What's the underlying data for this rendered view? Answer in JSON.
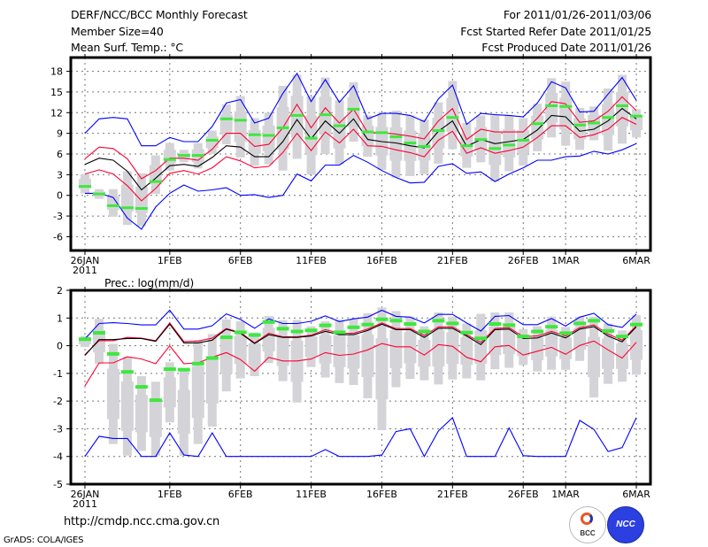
{
  "header": {
    "title": "DERF/NCC/BCC Monthly Forecast",
    "member_size": "Member Size=40",
    "period": "For 2011/01/26-2011/03/06",
    "started": "Fcst Started Refer Date 2011/01/25",
    "produced": "Fcst Produced Date 2011/01/26"
  },
  "footer": {
    "url": "http://cmdp.ncc.cma.gov.cn",
    "grads": "GrADS: COLA/IGES",
    "logos": [
      "BCC",
      "NCC"
    ]
  },
  "colors": {
    "max_min": "#0000ff",
    "spread": "#ff0033",
    "mean": "#000000",
    "member": "#3ee83e",
    "range": "#d4d4d8"
  },
  "chart_data": [
    {
      "type": "line",
      "title": "Mean Surf. Temp.: °C",
      "ylabel": "°C",
      "ylim": [
        -8,
        20
      ],
      "yticks": [
        -6,
        -3,
        0,
        3,
        6,
        9,
        12,
        15,
        18
      ],
      "xlim": [
        -1,
        40
      ],
      "x_ticks": [
        {
          "day": 0,
          "label": "26JAN",
          "sub": "2011"
        },
        {
          "day": 6,
          "label": "1FEB"
        },
        {
          "day": 11,
          "label": "6FEB"
        },
        {
          "day": 16,
          "label": "11FEB"
        },
        {
          "day": 21,
          "label": "16FEB"
        },
        {
          "day": 26,
          "label": "21FEB"
        },
        {
          "day": 31,
          "label": "26FEB"
        },
        {
          "day": 34,
          "label": "1MAR"
        },
        {
          "day": 39,
          "label": "6MAR"
        }
      ],
      "grid": true,
      "series": [
        {
          "name": "upper-max",
          "color": "#0000ff",
          "values": [
            9.0,
            11.1,
            11.3,
            11.1,
            7.2,
            7.2,
            8.4,
            7.8,
            7.8,
            10.0,
            13.4,
            13.9,
            10.5,
            11.2,
            14.8,
            17.7,
            13.6,
            16.8,
            13.5,
            15.9,
            11.1,
            11.9,
            11.9,
            11.6,
            10.7,
            14.0,
            16.0,
            10.3,
            11.9,
            11.7,
            11.6,
            11.4,
            13.4,
            16.5,
            15.6,
            12.1,
            12.2,
            14.7,
            17.1,
            13.8
          ]
        },
        {
          "name": "upper-spread",
          "color": "#ff0033",
          "values": [
            5.3,
            7.0,
            6.8,
            5.3,
            2.4,
            3.6,
            5.4,
            5.4,
            5.1,
            6.7,
            9.0,
            9.0,
            7.1,
            7.4,
            9.8,
            13.2,
            9.8,
            12.7,
            10.5,
            12.5,
            9.1,
            9.1,
            8.9,
            8.6,
            8.2,
            10.8,
            12.6,
            8.1,
            9.6,
            9.2,
            9.2,
            9.2,
            11.2,
            13.6,
            13.3,
            10.6,
            10.8,
            12.2,
            14.3,
            12.3
          ]
        },
        {
          "name": "ensemble-mean",
          "color": "#000000",
          "values": [
            4.5,
            5.4,
            5.1,
            3.5,
            0.8,
            2.5,
            4.3,
            4.5,
            4.2,
            5.5,
            7.2,
            7.0,
            5.6,
            5.6,
            7.8,
            11.0,
            8.2,
            10.8,
            9.0,
            11.1,
            8.1,
            7.8,
            7.6,
            7.2,
            6.9,
            9.3,
            10.8,
            7.1,
            8.1,
            7.5,
            7.8,
            8.1,
            9.5,
            11.6,
            11.4,
            9.3,
            9.6,
            10.8,
            12.6,
            11.1
          ]
        },
        {
          "name": "lower-spread",
          "color": "#ff0033",
          "values": [
            3.1,
            3.7,
            3.1,
            1.4,
            -0.8,
            1.0,
            3.2,
            3.6,
            3.1,
            4.0,
            5.6,
            5.0,
            4.0,
            4.2,
            6.2,
            9.0,
            6.5,
            9.2,
            7.6,
            9.6,
            7.2,
            7.1,
            6.6,
            6.2,
            5.6,
            8.0,
            9.3,
            6.1,
            6.9,
            6.1,
            6.5,
            7.0,
            8.4,
            10.1,
            10.1,
            8.4,
            8.8,
            9.6,
            11.3,
            10.3
          ]
        },
        {
          "name": "lower-min",
          "color": "#0000ff",
          "values": [
            0.3,
            0.3,
            -0.3,
            -3.3,
            -4.9,
            -1.7,
            0.3,
            1.5,
            0.6,
            0.8,
            1.1,
            0.0,
            0.1,
            -0.3,
            0.0,
            3.1,
            2.1,
            4.4,
            4.4,
            5.8,
            4.8,
            3.6,
            2.6,
            1.8,
            1.9,
            4.2,
            4.6,
            3.2,
            3.4,
            2.0,
            3.1,
            4.0,
            5.1,
            5.1,
            5.6,
            5.7,
            6.4,
            6.0,
            6.6,
            7.5
          ]
        }
      ],
      "markers": {
        "name": "member",
        "color": "#3ee83e",
        "values": [
          1.3,
          0.2,
          -1.5,
          -1.8,
          -1.9,
          2.0,
          5.2,
          5.8,
          5.8,
          8.0,
          11.1,
          10.9,
          8.8,
          8.7,
          9.8,
          11.6,
          8.3,
          11.7,
          10.1,
          12.5,
          9.2,
          9.1,
          8.5,
          7.6,
          7.1,
          9.4,
          11.3,
          7.2,
          8.1,
          6.8,
          7.3,
          8.0,
          10.4,
          13.0,
          12.9,
          10.2,
          10.5,
          11.3,
          13.0,
          11.5
        ]
      },
      "ranges": {
        "name": "range",
        "low": [
          0.3,
          -0.5,
          -3.1,
          -4.3,
          -4.5,
          0.2,
          3.6,
          4.8,
          3.9,
          6.0,
          7.4,
          5.5,
          4.3,
          4.5,
          3.6,
          5.3,
          3.0,
          6.0,
          4.5,
          7.8,
          5.6,
          3.7,
          2.6,
          2.8,
          3.1,
          4.6,
          6.7,
          4.0,
          4.8,
          2.0,
          3.5,
          4.3,
          6.4,
          8.4,
          7.2,
          6.6,
          8.0,
          6.5,
          7.5,
          8.4
        ],
        "high": [
          3.1,
          0.9,
          0.9,
          3.5,
          3.2,
          5.8,
          7.6,
          6.6,
          7.6,
          9.4,
          13.2,
          14.4,
          11.2,
          12.0,
          15.9,
          17.5,
          14.4,
          17.1,
          13.8,
          16.4,
          11.6,
          12.0,
          12.3,
          11.6,
          11.0,
          13.5,
          16.6,
          10.5,
          11.6,
          11.6,
          11.6,
          11.2,
          13.3,
          17.0,
          16.5,
          12.7,
          12.9,
          15.5,
          17.5,
          12.5
        ]
      }
    },
    {
      "type": "line",
      "title": "Prec.: log(mm/d)",
      "ylabel": "log(mm/d)",
      "ylim": [
        -5,
        2
      ],
      "yticks": [
        -5,
        -4,
        -3,
        -2,
        -1,
        0,
        1,
        2
      ],
      "xlim": [
        -1,
        40
      ],
      "x_ticks": [
        {
          "day": 0,
          "label": "26JAN",
          "sub": "2011"
        },
        {
          "day": 6,
          "label": "1FEB"
        },
        {
          "day": 11,
          "label": "6FEB"
        },
        {
          "day": 16,
          "label": "11FEB"
        },
        {
          "day": 21,
          "label": "16FEB"
        },
        {
          "day": 26,
          "label": "21FEB"
        },
        {
          "day": 31,
          "label": "26FEB"
        },
        {
          "day": 34,
          "label": "1MAR"
        },
        {
          "day": 39,
          "label": "6MAR"
        }
      ],
      "grid": true,
      "series": [
        {
          "name": "upper-max",
          "color": "#0000ff",
          "values": [
            0.25,
            0.8,
            0.83,
            0.8,
            0.75,
            0.75,
            1.28,
            0.6,
            0.6,
            0.72,
            1.15,
            0.95,
            0.63,
            0.97,
            0.8,
            0.8,
            0.88,
            1.08,
            0.87,
            0.97,
            1.03,
            1.28,
            1.06,
            1.03,
            0.82,
            1.13,
            1.13,
            0.82,
            0.53,
            1.06,
            1.09,
            0.76,
            0.76,
            0.98,
            0.71,
            1.03,
            1.17,
            0.76,
            0.66,
            1.14
          ]
        },
        {
          "name": "upper-spread",
          "color": "#ff0033",
          "values": [
            -0.32,
            0.18,
            0.18,
            0.3,
            0.27,
            0.18,
            0.82,
            0.15,
            0.17,
            0.27,
            0.62,
            0.48,
            0.1,
            0.45,
            0.32,
            0.32,
            0.38,
            0.58,
            0.45,
            0.45,
            0.6,
            0.82,
            0.62,
            0.62,
            0.37,
            0.68,
            0.68,
            0.4,
            0.12,
            0.62,
            0.65,
            0.33,
            0.35,
            0.52,
            0.35,
            0.65,
            0.75,
            0.42,
            0.2,
            0.72
          ]
        },
        {
          "name": "ensemble-mean",
          "color": "#000000",
          "values": [
            -0.35,
            0.22,
            0.22,
            0.26,
            0.26,
            0.16,
            0.78,
            0.1,
            0.1,
            0.2,
            0.6,
            0.45,
            0.08,
            0.4,
            0.3,
            0.3,
            0.35,
            0.52,
            0.4,
            0.4,
            0.55,
            0.78,
            0.58,
            0.58,
            0.3,
            0.63,
            0.63,
            0.35,
            0.04,
            0.58,
            0.6,
            0.26,
            0.28,
            0.46,
            0.28,
            0.6,
            0.69,
            0.35,
            0.14,
            0.68
          ]
        },
        {
          "name": "lower-spread",
          "color": "#ff0033",
          "values": [
            -1.45,
            -0.62,
            -0.62,
            -0.4,
            -0.48,
            -0.65,
            0.0,
            -0.65,
            -0.62,
            -0.42,
            -0.25,
            -0.5,
            -0.92,
            -0.42,
            -0.55,
            -0.55,
            -0.48,
            -0.25,
            -0.35,
            -0.3,
            -0.15,
            0.08,
            -0.04,
            -0.04,
            -0.34,
            0.04,
            -0.02,
            -0.42,
            -0.58,
            -0.04,
            0.01,
            -0.34,
            -0.2,
            -0.06,
            -0.31,
            0.01,
            0.17,
            -0.15,
            -0.45,
            0.12
          ]
        },
        {
          "name": "lower-min",
          "color": "#0000ff",
          "values": [
            -4,
            -3.27,
            -3.35,
            -3.35,
            -4,
            -4,
            -3.15,
            -3.95,
            -4,
            -3.15,
            -4,
            -4,
            -4,
            -4,
            -4,
            -4,
            -4,
            -3.75,
            -4,
            -4,
            -4,
            -3.95,
            -3.1,
            -3.0,
            -4,
            -3.08,
            -2.6,
            -4,
            -4,
            -4,
            -2.97,
            -3.97,
            -4,
            -4,
            -4,
            -2.7,
            -3.02,
            -3.82,
            -3.68,
            -2.6
          ]
        }
      ],
      "markers": {
        "name": "member",
        "color": "#3ee83e",
        "values": [
          0.25,
          0.48,
          -0.28,
          -0.93,
          -1.47,
          -1.95,
          -0.83,
          -0.85,
          -0.63,
          -0.43,
          0.32,
          0.5,
          0.4,
          0.87,
          0.63,
          0.53,
          0.57,
          0.75,
          0.5,
          0.68,
          0.78,
          0.97,
          0.92,
          0.8,
          0.53,
          0.92,
          0.82,
          0.49,
          0.28,
          0.8,
          0.76,
          0.35,
          0.53,
          0.7,
          0.47,
          0.82,
          0.92,
          0.55,
          0.35,
          0.78
        ]
      },
      "ranges": {
        "name": "range",
        "low": [
          -0.05,
          -0.65,
          -3.55,
          -3.97,
          -3.8,
          -3.97,
          -2.77,
          -3.97,
          -3.55,
          -2.92,
          -1.65,
          -1.18,
          -1.1,
          -0.63,
          -1.28,
          -2.05,
          -0.77,
          -1.15,
          -1.35,
          -1.42,
          -1.9,
          -3.05,
          -1.5,
          -1.2,
          -1.25,
          -1.4,
          -1.22,
          -1.18,
          -1.25,
          -0.85,
          -0.8,
          -0.7,
          -0.93,
          -0.87,
          -0.87,
          -0.55,
          -1.87,
          -1.38,
          -1.3,
          -1.05
        ],
        "high": [
          0.35,
          0.97,
          0.07,
          -0.4,
          -1.1,
          -1.3,
          -0.6,
          -0.8,
          0.2,
          0.42,
          0.95,
          0.88,
          0.48,
          1.07,
          0.92,
          0.93,
          0.7,
          0.88,
          0.95,
          0.97,
          1.17,
          1.38,
          1.25,
          1.05,
          0.7,
          1.2,
          1.05,
          0.8,
          1.15,
          1.2,
          1.2,
          0.6,
          0.7,
          1.05,
          0.68,
          1.05,
          1.05,
          0.8,
          0.55,
          1.1
        ]
      }
    }
  ]
}
